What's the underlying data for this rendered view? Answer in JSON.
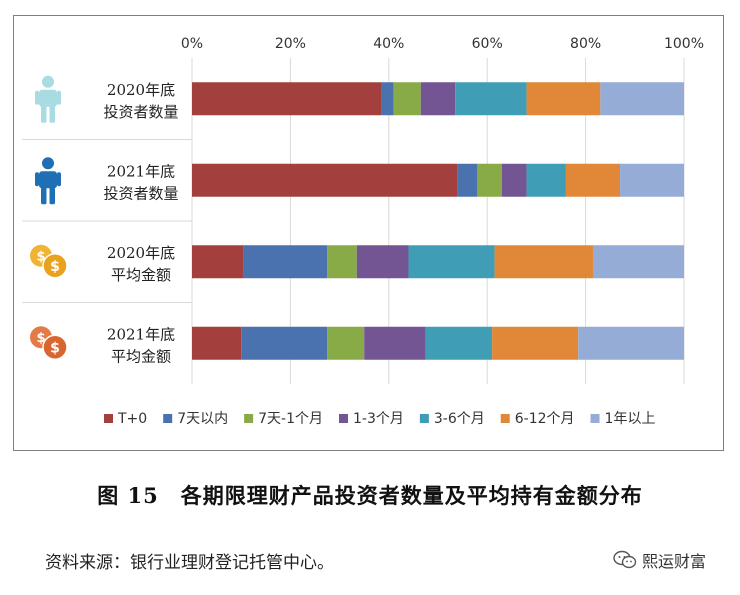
{
  "chart_data": {
    "type": "bar",
    "orientation": "horizontal",
    "stacked": "percent",
    "xlim": [
      0,
      100
    ],
    "ticks": [
      "0%",
      "20%",
      "40%",
      "60%",
      "80%",
      "100%"
    ],
    "grid": true,
    "legend_position": "bottom",
    "categories": [
      [
        "2020年底",
        "投资者数量"
      ],
      [
        "2021年底",
        "投资者数量"
      ],
      [
        "2020年底",
        "平均金额"
      ],
      [
        "2021年底",
        "平均金额"
      ]
    ],
    "category_icons": [
      "person-light",
      "person-dark",
      "coins-gold",
      "coins-orange"
    ],
    "series": [
      {
        "name": "T+0",
        "color": "#A3403D",
        "values": [
          38.5,
          54.0,
          10.5,
          10.0
        ]
      },
      {
        "name": "7天以内",
        "color": "#4A72AF",
        "values": [
          2.5,
          4.0,
          17.0,
          17.5
        ]
      },
      {
        "name": "7天-1个月",
        "color": "#88AB47",
        "values": [
          5.5,
          5.0,
          6.0,
          7.5
        ]
      },
      {
        "name": "1-3个月",
        "color": "#735594",
        "values": [
          7.0,
          5.0,
          10.5,
          12.5
        ]
      },
      {
        "name": "3-6个月",
        "color": "#3F9DB5",
        "values": [
          14.5,
          8.0,
          17.5,
          13.5
        ]
      },
      {
        "name": "6-12个月",
        "color": "#E08838",
        "values": [
          15.0,
          11.0,
          20.0,
          17.5
        ]
      },
      {
        "name": "1年以上",
        "color": "#95ACD6",
        "values": [
          17.0,
          13.0,
          18.5,
          21.5
        ]
      }
    ]
  },
  "caption": "图 15　各期限理财产品投资者数量及平均持有金额分布",
  "source": "资料来源：银行业理财登记托管中心。",
  "watermark": "熙运财富"
}
